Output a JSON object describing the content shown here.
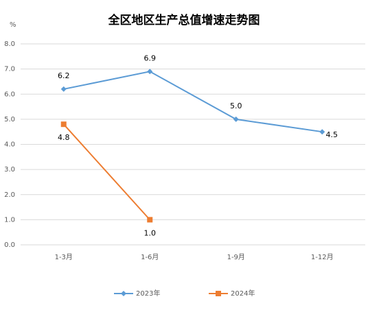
{
  "chart_data": {
    "type": "line",
    "title": "全区地区生产总值增速走势图",
    "y_unit": "%",
    "categories": [
      "1-3月",
      "1-6月",
      "1-9月",
      "1-12月"
    ],
    "series": [
      {
        "name": "2023年",
        "color": "#5b9bd5",
        "marker": "diamond",
        "values": [
          6.2,
          6.9,
          5.0,
          4.5
        ],
        "value_labels": [
          "6.2",
          "6.9",
          "5.0",
          "4.5"
        ]
      },
      {
        "name": "2024年",
        "color": "#ed7d31",
        "marker": "square",
        "values": [
          4.8,
          1.0,
          null,
          null
        ],
        "value_labels": [
          "4.8",
          "1.0",
          null,
          null
        ]
      }
    ],
    "ylim": [
      0,
      8
    ],
    "yticks": [
      {
        "value": 0,
        "label": "0.0"
      },
      {
        "value": 1,
        "label": "1.0"
      },
      {
        "value": 2,
        "label": "2.0"
      },
      {
        "value": 3,
        "label": "3.0"
      },
      {
        "value": 4,
        "label": "4.0"
      },
      {
        "value": 5,
        "label": "5.0"
      },
      {
        "value": 6,
        "label": "6.0"
      },
      {
        "value": 7,
        "label": "7.0"
      },
      {
        "value": 8,
        "label": "8.0"
      }
    ],
    "grid": true,
    "legend": "bottom"
  }
}
